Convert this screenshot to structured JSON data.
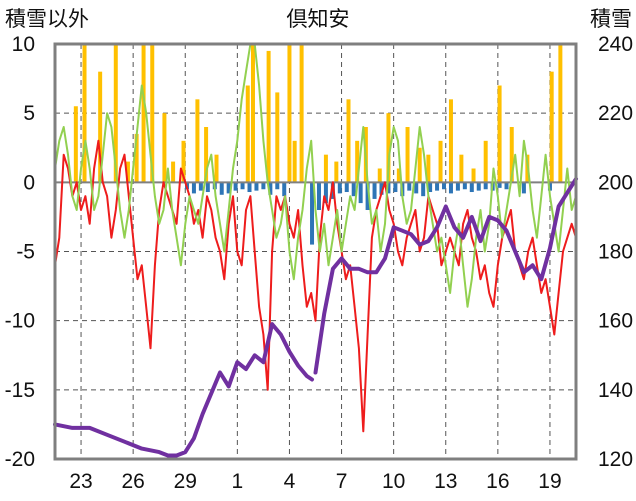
{
  "chart_data": {
    "type": "line",
    "title": "倶知安",
    "left_axis_label": "積雪以外",
    "right_axis_label": "積雪",
    "ylim_left": [
      -20,
      10
    ],
    "yticks_left": [
      "10",
      "5",
      "0",
      "-5",
      "-10",
      "-15",
      "-20"
    ],
    "ylim_right": [
      120,
      240
    ],
    "yticks_right": [
      "240",
      "220",
      "200",
      "180",
      "160",
      "140",
      "120"
    ],
    "x_range_days": [
      0,
      30
    ],
    "x_tick_positions_days": [
      1.5,
      4.5,
      7.5,
      10.5,
      13.5,
      16.5,
      19.5,
      22.5,
      25.5,
      28.5
    ],
    "xticks": [
      "23",
      "26",
      "29",
      "1",
      "4",
      "7",
      "10",
      "13",
      "16",
      "19"
    ],
    "grid": true,
    "colors": {
      "temperature": "#ee1c1c",
      "wind": "#92d050",
      "snow_depth": "#7030a0",
      "snowfall": "#ffc000",
      "snow_decrease": "#2e75b6",
      "grid": "#555555",
      "frame": "#7f7f7f"
    },
    "series": [
      {
        "key": "temperature",
        "axis": "left",
        "x": [
          0,
          0.25,
          0.5,
          0.75,
          1,
          1.25,
          1.5,
          1.75,
          2,
          2.25,
          2.5,
          2.75,
          3,
          3.25,
          3.5,
          3.75,
          4,
          4.25,
          4.5,
          4.75,
          5,
          5.25,
          5.5,
          5.75,
          6,
          6.25,
          6.5,
          6.75,
          7,
          7.25,
          7.5,
          7.75,
          8,
          8.25,
          8.5,
          8.75,
          9,
          9.25,
          9.5,
          9.75,
          10,
          10.25,
          10.5,
          10.75,
          11,
          11.25,
          11.5,
          11.75,
          12,
          12.25,
          12.5,
          12.75,
          13,
          13.25,
          13.5,
          13.75,
          14,
          14.25,
          14.5,
          14.75,
          15,
          15.25,
          15.5,
          15.75,
          16,
          16.25,
          16.5,
          16.75,
          17,
          17.25,
          17.5,
          17.75,
          18,
          18.25,
          18.5,
          18.75,
          19,
          19.25,
          19.5,
          19.75,
          20,
          20.25,
          20.5,
          20.75,
          21,
          21.25,
          21.5,
          21.75,
          22,
          22.25,
          22.5,
          22.75,
          23,
          23.25,
          23.5,
          23.75,
          24,
          24.25,
          24.5,
          24.75,
          25,
          25.25,
          25.5,
          25.75,
          26,
          26.25,
          26.5,
          26.75,
          27,
          27.25,
          27.5,
          27.75,
          28,
          28.25,
          28.5,
          28.75,
          29,
          29.25,
          29.5,
          29.75,
          30
        ],
        "y": [
          -6,
          -4,
          2,
          1,
          -1,
          0,
          -2,
          -1,
          -3,
          1,
          3,
          0,
          -1,
          -4,
          -2,
          1,
          2,
          -1,
          -4,
          -7,
          -6,
          -9,
          -12,
          -6,
          -2,
          0,
          -1,
          -2,
          -3,
          1,
          0,
          -1,
          -3,
          -2,
          -4,
          -1,
          -2,
          -4,
          -5,
          -7,
          -3,
          -1,
          -5,
          -6,
          -2,
          -1,
          -5,
          -9,
          -11,
          -15,
          -5,
          -1,
          -2,
          -1,
          -3,
          -4,
          -2,
          -6,
          -9,
          -8,
          -10,
          -4,
          -1,
          -2,
          0,
          -3,
          -5,
          -7,
          -6,
          -9,
          -12,
          -18,
          -11,
          -4,
          -2,
          -1,
          0,
          -2,
          -3,
          -5,
          -6,
          -4,
          -3,
          -2,
          -5,
          -4,
          -1,
          -2,
          -3,
          -6,
          -5,
          -4,
          -5,
          -6,
          -3,
          -2,
          -4,
          -5,
          -7,
          -6,
          -8,
          -9,
          -6,
          -4,
          -3,
          -2,
          -5,
          -6,
          -7,
          -5,
          -4,
          -6,
          -8,
          -7,
          -9,
          -11,
          -8,
          -5,
          -4,
          -3,
          -4
        ],
        "unit": "°C"
      },
      {
        "key": "wind",
        "axis": "left",
        "x": [
          0,
          0.25,
          0.5,
          0.75,
          1,
          1.25,
          1.5,
          1.75,
          2,
          2.25,
          2.5,
          2.75,
          3,
          3.25,
          3.5,
          3.75,
          4,
          4.25,
          4.5,
          4.75,
          5,
          5.25,
          5.5,
          5.75,
          6,
          6.25,
          6.5,
          6.75,
          7,
          7.25,
          7.5,
          7.75,
          8,
          8.25,
          8.5,
          8.75,
          9,
          9.25,
          9.5,
          9.75,
          10,
          10.25,
          10.5,
          10.75,
          11,
          11.25,
          11.5,
          11.75,
          12,
          12.25,
          12.5,
          12.75,
          13,
          13.25,
          13.5,
          13.75,
          14,
          14.25,
          14.5,
          14.75,
          15,
          15.25,
          15.5,
          15.75,
          16,
          16.25,
          16.5,
          16.75,
          17,
          17.25,
          17.5,
          17.75,
          18,
          18.25,
          18.5,
          18.75,
          19,
          19.25,
          19.5,
          19.75,
          20,
          20.25,
          20.5,
          20.75,
          21,
          21.25,
          21.5,
          21.75,
          22,
          22.25,
          22.5,
          22.75,
          23,
          23.25,
          23.5,
          23.75,
          24,
          24.25,
          24.5,
          24.75,
          25,
          25.25,
          25.5,
          25.75,
          26,
          26.25,
          26.5,
          26.75,
          27,
          27.25,
          27.5,
          27.75,
          28,
          28.25,
          28.5,
          28.75,
          29,
          29.25,
          29.5,
          29.75,
          30
        ],
        "y": [
          1,
          3,
          4,
          2,
          -1,
          -2,
          1,
          3,
          1,
          -2,
          -1,
          2,
          5,
          4,
          1,
          -2,
          -4,
          -2,
          1,
          4,
          7,
          5,
          2,
          -1,
          -3,
          -2,
          1,
          -2,
          -4,
          -6,
          -3,
          -1,
          -2,
          -3,
          -1,
          1,
          2,
          -1,
          -3,
          -5,
          -2,
          1,
          3,
          6,
          8,
          10,
          10,
          7,
          3,
          0,
          -2,
          -4,
          -3,
          -1,
          -5,
          -7,
          -4,
          -2,
          1,
          3,
          -2,
          -5,
          -3,
          -6,
          -4,
          -2,
          -5,
          -3,
          -1,
          -2,
          1,
          4,
          0,
          -3,
          -2,
          -5,
          -3,
          2,
          4,
          3,
          -1,
          -3,
          -2,
          1,
          4,
          2,
          -1,
          -3,
          -5,
          -4,
          -6,
          -8,
          -5,
          -3,
          -6,
          -9,
          -7,
          -4,
          -2,
          -5,
          -3,
          1,
          -1,
          -4,
          -2,
          0,
          2,
          -1,
          3,
          1,
          -2,
          -4,
          -1,
          2,
          -1,
          -3,
          -5,
          -2,
          1,
          -2,
          -1
        ],
        "unit": "m/s"
      },
      {
        "key": "snow_depth",
        "axis": "right",
        "x": [
          0,
          1,
          2,
          3,
          4,
          5,
          6,
          6.5,
          7,
          7.5,
          8,
          8.5,
          9,
          9.5,
          10,
          10.5,
          11,
          11.5,
          12,
          12.5,
          13,
          13.5,
          14,
          14.5,
          14.8,
          15,
          15.5,
          16,
          16.5,
          17,
          17.5,
          18,
          18.5,
          19,
          19.5,
          20,
          20.5,
          21,
          21.5,
          22,
          22.5,
          23,
          23.5,
          24,
          24.5,
          25,
          25.5,
          26,
          26.5,
          27,
          27.5,
          28,
          28.5,
          29,
          29.5,
          30
        ],
        "y": [
          130,
          129,
          129,
          127,
          125,
          123,
          122,
          121,
          121,
          122,
          126,
          133,
          139,
          145,
          141,
          148,
          146,
          150,
          148,
          159,
          156,
          151,
          147,
          144,
          143,
          145,
          162,
          175,
          178,
          175,
          175,
          174,
          174,
          178,
          187,
          186,
          185,
          182,
          183,
          187,
          193,
          187,
          184,
          190,
          183,
          190,
          189,
          186,
          180,
          174,
          176,
          172,
          181,
          193,
          197,
          201
        ],
        "unit": "cm",
        "breaks_after_x": [
          14.8
        ]
      },
      {
        "key": "snowfall",
        "axis": "left",
        "type": "bar",
        "x": [
          1.2,
          1.7,
          2.6,
          3.5,
          4.2,
          4.7,
          5.1,
          5.6,
          6.3,
          6.8,
          7.4,
          8.2,
          8.7,
          9.3,
          11.1,
          11.4,
          12.3,
          12.8,
          13.5,
          13.8,
          14.2,
          15.6,
          16.2,
          16.9,
          17.4,
          17.9,
          18.7,
          19.2,
          19.8,
          20.3,
          21.0,
          21.5,
          22.2,
          22.8,
          23.4,
          24.1,
          24.8,
          25.6,
          26.3,
          27.2,
          28.6,
          29.1
        ],
        "y": [
          5.5,
          10,
          8,
          10,
          1.5,
          3.5,
          10,
          10,
          5,
          1.5,
          3,
          6,
          4,
          2,
          7,
          10,
          9.5,
          6.5,
          10,
          3,
          10,
          2,
          1.5,
          6,
          3,
          4,
          1,
          5,
          1,
          4,
          2.5,
          2,
          3,
          6,
          2,
          1,
          3,
          7,
          4,
          2,
          8,
          10
        ],
        "unit": "cm"
      },
      {
        "key": "snow_decrease",
        "axis": "left",
        "type": "bar",
        "x": [
          7.6,
          8.0,
          8.4,
          8.8,
          9.2,
          9.6,
          10.0,
          10.4,
          10.8,
          11.2,
          11.6,
          12.0,
          12.4,
          12.8,
          13.2,
          14.8,
          15.2,
          15.6,
          16.0,
          16.4,
          16.8,
          17.2,
          17.6,
          18.0,
          18.4,
          18.8,
          19.2,
          19.6,
          20.0,
          20.4,
          20.8,
          21.2,
          21.6,
          22.0,
          22.4,
          22.8,
          23.2,
          23.6,
          24.0,
          24.4,
          24.8,
          25.2,
          25.6,
          26.0,
          27.0,
          28.5
        ],
        "y": [
          -0.5,
          -0.8,
          -0.6,
          -0.7,
          -0.5,
          -0.9,
          -0.8,
          -0.6,
          -0.5,
          -0.7,
          -0.6,
          -0.5,
          -0.9,
          -0.5,
          -1.0,
          -4.5,
          -2.0,
          -1.5,
          -1.2,
          -0.8,
          -0.7,
          -1.0,
          -1.5,
          -2.0,
          -1.2,
          -0.9,
          -0.8,
          -0.7,
          -1.0,
          -0.6,
          -0.8,
          -1.0,
          -0.7,
          -0.6,
          -0.5,
          -0.8,
          -0.6,
          -0.5,
          -0.7,
          -0.6,
          -0.5,
          -0.6,
          -0.4,
          -0.5,
          -0.8,
          -0.6
        ],
        "unit": "cm"
      }
    ]
  }
}
